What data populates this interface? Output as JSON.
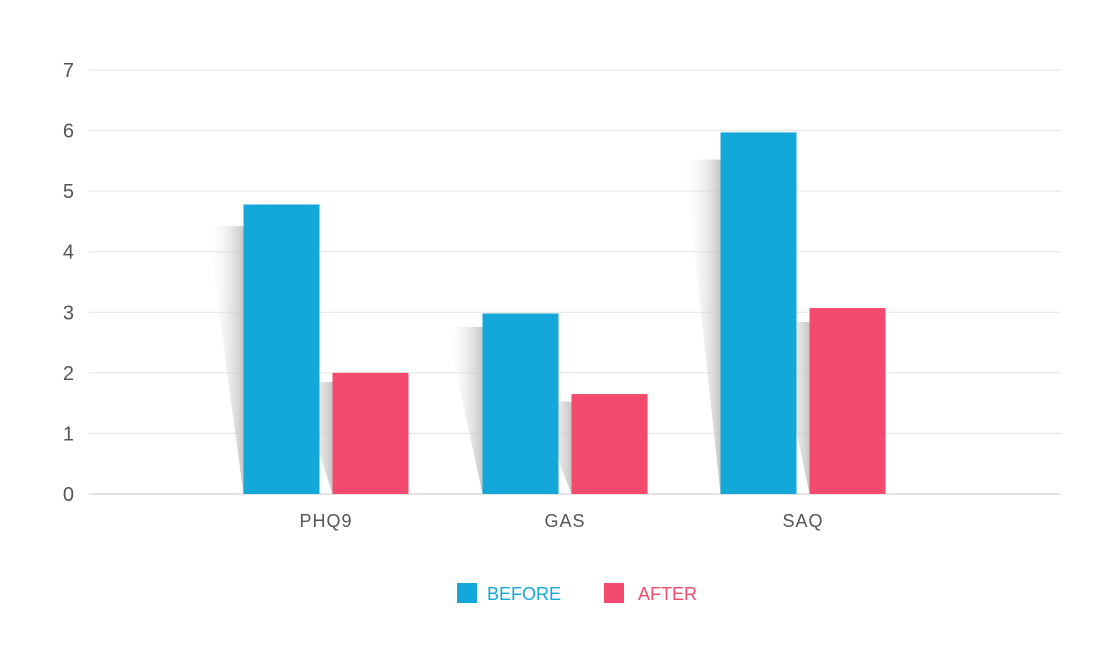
{
  "chart_data": {
    "type": "bar",
    "categories": [
      "PHQ9",
      "GAS",
      "SAQ"
    ],
    "series": [
      {
        "name": "BEFORE",
        "values": [
          4.78,
          2.98,
          5.97
        ],
        "color": "#14A7D9"
      },
      {
        "name": "AFTER",
        "values": [
          2.0,
          1.65,
          3.07
        ],
        "color": "#F44A6E"
      }
    ],
    "title": "",
    "xlabel": "",
    "ylabel": "",
    "ylim": [
      0,
      7
    ],
    "yticks": [
      "0",
      "1",
      "2",
      "3",
      "4",
      "5",
      "6",
      "7"
    ],
    "grid": true,
    "legend_position": "bottom-center"
  }
}
